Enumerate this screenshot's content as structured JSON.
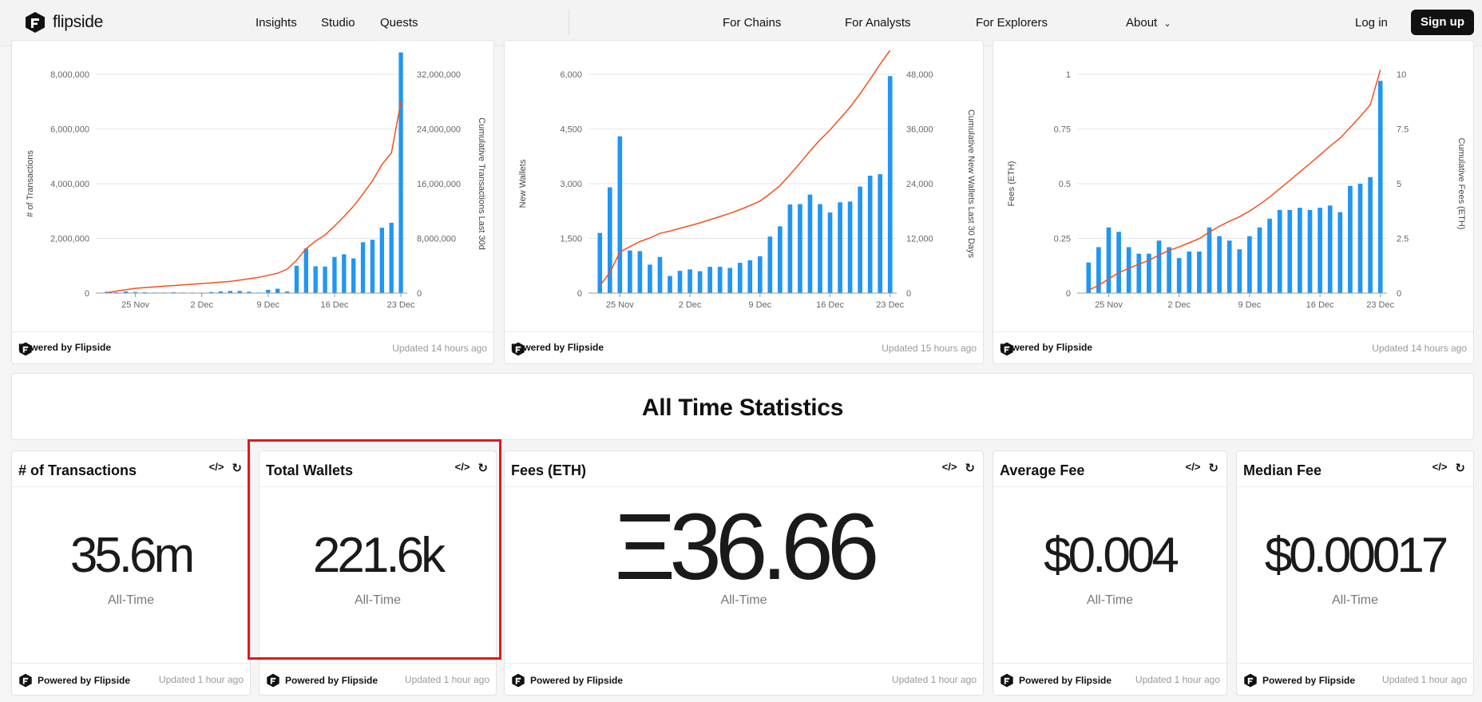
{
  "nav": {
    "brand": "flipside",
    "left_links": [
      "Insights",
      "Studio",
      "Quests"
    ],
    "right_links": [
      "For Chains",
      "For Analysts",
      "For Explorers",
      "About"
    ],
    "login": "Log in",
    "signup": "Sign up"
  },
  "colors": {
    "bar": "#2196f3",
    "line": "#f4511e",
    "accent": "#e01919"
  },
  "charts": [
    {
      "updated": "Updated 14 hours ago",
      "powered": "Powered by Flipside"
    },
    {
      "updated": "Updated 15 hours ago",
      "powered": "Powered by Flipside"
    },
    {
      "updated": "Updated 14 hours ago",
      "powered": "Powered by Flipside"
    }
  ],
  "chart_data": [
    {
      "type": "bar",
      "xlabel": "",
      "ylabel": "# of Transactions",
      "y2label": "Cumulative Transactions Last 30d",
      "x_ticks": [
        "25 Nov",
        "2 Dec",
        "9 Dec",
        "16 Dec",
        "23 Dec"
      ],
      "y_ticks": [
        "0",
        "2,000,000",
        "4,000,000",
        "6,000,000",
        "8,000,000"
      ],
      "y2_ticks": [
        "0",
        "8,000,000",
        "16,000,000",
        "24,000,000",
        "32,000,000"
      ],
      "ylim": [
        0,
        8000000
      ],
      "y2lim": [
        0,
        32000000
      ],
      "series": [
        {
          "name": "# of Transactions",
          "kind": "bar",
          "values": [
            50000,
            30000,
            60000,
            40000,
            30000,
            20000,
            20000,
            30000,
            20000,
            20000,
            10000,
            40000,
            60000,
            80000,
            80000,
            50000,
            20000,
            120000,
            160000,
            60000,
            1000000,
            1630000,
            980000,
            970000,
            1320000,
            1420000,
            1270000,
            1860000,
            1950000,
            2390000,
            2570000,
            8800000
          ]
        },
        {
          "name": "Cumulative Transactions Last 30d",
          "kind": "line",
          "values": [
            50000,
            300000,
            500000,
            700000,
            800000,
            900000,
            1000000,
            1100000,
            1200000,
            1300000,
            1400000,
            1500000,
            1600000,
            1700000,
            1900000,
            2100000,
            2300000,
            2600000,
            2900000,
            3500000,
            4800000,
            6500000,
            7600000,
            8500000,
            9800000,
            11200000,
            12700000,
            14500000,
            16400000,
            18800000,
            20500000,
            28000000
          ]
        }
      ]
    },
    {
      "type": "bar",
      "xlabel": "",
      "ylabel": "New Wallets",
      "y2label": "Cumulative New Wallets Last 30 Days",
      "x_ticks": [
        "25 Nov",
        "2 Dec",
        "9 Dec",
        "16 Dec",
        "23 Dec"
      ],
      "y_ticks": [
        "0",
        "1,500",
        "3,000",
        "4,500",
        "6,000"
      ],
      "y2_ticks": [
        "0",
        "12,000",
        "24,000",
        "36,000",
        "48,000"
      ],
      "ylim": [
        0,
        6000
      ],
      "y2lim": [
        0,
        48000
      ],
      "series": [
        {
          "name": "New Wallets",
          "kind": "bar",
          "values": [
            1650,
            2900,
            4300,
            1170,
            1150,
            780,
            990,
            470,
            610,
            650,
            600,
            720,
            720,
            690,
            830,
            900,
            1010,
            1550,
            1830,
            2430,
            2440,
            2700,
            2440,
            2210,
            2490,
            2510,
            2920,
            3220,
            3260,
            5950
          ]
        },
        {
          "name": "Cumulative New Wallets Last 30 Days",
          "kind": "line",
          "values": [
            1650,
            4500,
            9000,
            10200,
            11300,
            12100,
            13100,
            13600,
            14200,
            14800,
            15400,
            16100,
            16800,
            17500,
            18300,
            19200,
            20200,
            21800,
            23600,
            26000,
            28500,
            31200,
            33600,
            35800,
            38300,
            40800,
            43700,
            46900,
            50200,
            56000
          ]
        }
      ]
    },
    {
      "type": "bar",
      "xlabel": "",
      "ylabel": "Fees (ETH)",
      "y2label": "Cumulative Fees (ETH)",
      "x_ticks": [
        "25 Nov",
        "2 Dec",
        "9 Dec",
        "16 Dec",
        "23 Dec"
      ],
      "y_ticks": [
        "0",
        "0.25",
        "0.5",
        "0.75",
        "1"
      ],
      "y2_ticks": [
        "0",
        "2.5",
        "5",
        "7.5",
        "10"
      ],
      "ylim": [
        0,
        1
      ],
      "y2lim": [
        0,
        10
      ],
      "series": [
        {
          "name": "Fees (ETH)",
          "kind": "bar",
          "values": [
            0.14,
            0.21,
            0.3,
            0.28,
            0.21,
            0.18,
            0.18,
            0.24,
            0.21,
            0.16,
            0.19,
            0.19,
            0.3,
            0.26,
            0.24,
            0.2,
            0.26,
            0.3,
            0.34,
            0.38,
            0.38,
            0.39,
            0.38,
            0.39,
            0.4,
            0.37,
            0.49,
            0.5,
            0.53,
            0.97
          ]
        },
        {
          "name": "Cumulative Fees (ETH)",
          "kind": "line",
          "values": [
            0.14,
            0.35,
            0.65,
            0.93,
            1.14,
            1.32,
            1.5,
            1.74,
            1.95,
            2.11,
            2.3,
            2.49,
            2.79,
            3.05,
            3.29,
            3.49,
            3.75,
            4.05,
            4.39,
            4.77,
            5.15,
            5.54,
            5.92,
            6.31,
            6.71,
            7.08,
            7.57,
            8.07,
            8.6,
            10.2
          ]
        }
      ]
    }
  ],
  "section_title": "All Time Statistics",
  "stats": [
    {
      "title": "# of Transactions",
      "value": "35.6m",
      "sub": "All-Time",
      "updated": "Updated 1 hour ago",
      "powered": "Powered by Flipside"
    },
    {
      "title": "Total Wallets",
      "value": "221.6k",
      "sub": "All-Time",
      "updated": "Updated 1 hour ago",
      "powered": "Powered by Flipside"
    },
    {
      "title": "Fees (ETH)",
      "value": "Ξ36.66",
      "sub": "All-Time",
      "updated": "Updated 1 hour ago",
      "powered": "Powered by Flipside"
    },
    {
      "title": "Average Fee",
      "value": "$0.004",
      "sub": "All-Time",
      "updated": "Updated 1 hour ago",
      "powered": "Powered by Flipside"
    },
    {
      "title": "Median Fee",
      "value": "$0.00017",
      "sub": "All-Time",
      "updated": "Updated 1 hour ago",
      "powered": "Powered by Flipside"
    }
  ]
}
